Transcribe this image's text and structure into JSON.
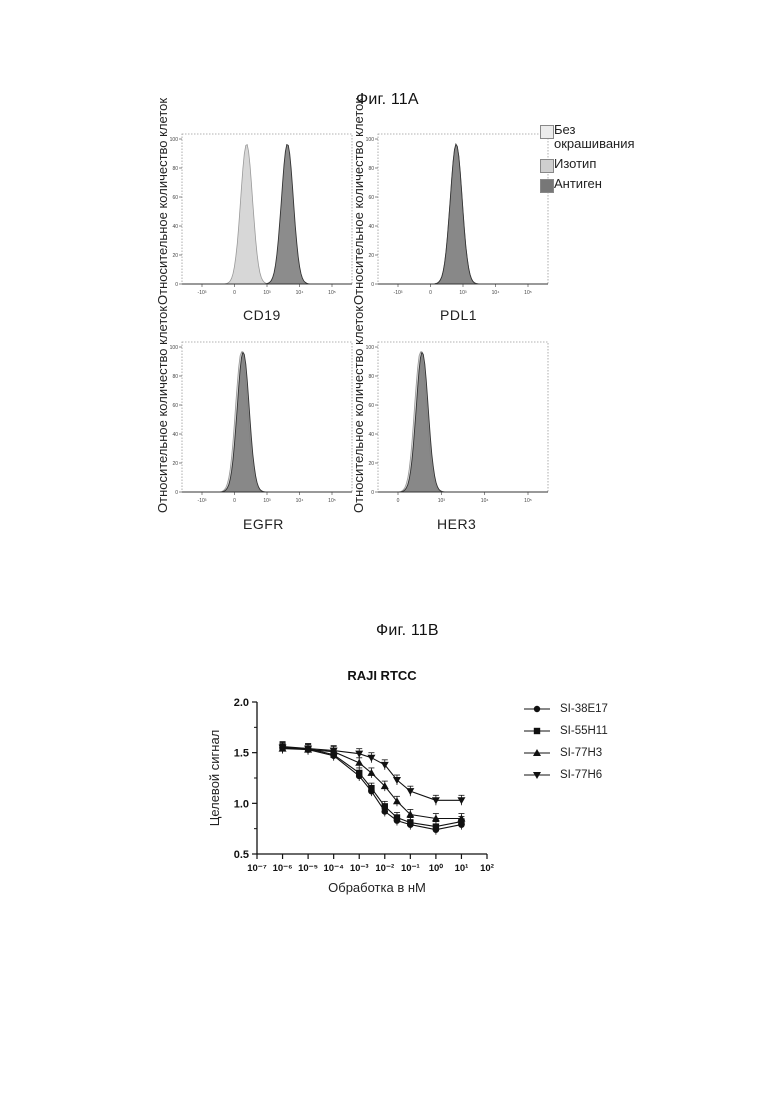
{
  "figure_a": {
    "title": "Фиг. 11A",
    "y_label": "Относительное количество клеток",
    "legend": [
      {
        "label_lines": [
          "Без",
          "окрашивания"
        ],
        "color": "#e8e8e8"
      },
      {
        "label_lines": [
          "Изотип"
        ],
        "color": "#c9c9c9"
      },
      {
        "label_lines": [
          "Антиген"
        ],
        "color": "#7a7a7a"
      }
    ],
    "y_ticks": [
      "100",
      "80",
      "60",
      "40",
      "20",
      "0"
    ],
    "panels": [
      {
        "name": "CD19",
        "x_ticks": [
          "-10³",
          "0",
          "10³",
          "10⁴",
          "10⁵"
        ],
        "isotype_peak": 0.38,
        "antigen_peak": 0.62
      },
      {
        "name": "PDL1",
        "x_ticks": [
          "-10³",
          "0",
          "10³",
          "10⁴",
          "10⁵"
        ],
        "isotype_peak": 0.46,
        "antigen_peak": 0.46
      },
      {
        "name": "EGFR",
        "x_ticks": [
          "-10³",
          "0",
          "10³",
          "10⁴",
          "10⁵"
        ],
        "isotype_peak": 0.35,
        "antigen_peak": 0.36
      },
      {
        "name": "HER3",
        "x_ticks": [
          "0",
          "10³",
          "10⁴",
          "10⁵"
        ],
        "isotype_peak": 0.25,
        "antigen_peak": 0.26
      }
    ]
  },
  "figure_b": {
    "title": "Фиг. 11B",
    "chart_data": {
      "type": "line",
      "title": "RAJI RTCC",
      "xlabel": "Обработка в нМ",
      "ylabel": "Целевой сигнал",
      "x_scale": "log",
      "xlim": [
        1e-07,
        100
      ],
      "ylim": [
        0.5,
        2.0
      ],
      "x": [
        1e-06,
        1e-05,
        0.0001,
        0.001,
        0.003,
        0.01,
        0.03,
        0.1,
        1,
        10
      ],
      "x_tick_labels": [
        "10⁻⁷",
        "10⁻⁶",
        "10⁻⁵",
        "10⁻⁴",
        "10⁻³",
        "10⁻²",
        "10⁻¹",
        "10⁰",
        "10¹",
        "10²"
      ],
      "y_tick_labels": [
        "0.5",
        "1.0",
        "1.5",
        "2.0"
      ],
      "series": [
        {
          "name": "SI-38E17",
          "marker": "circle",
          "values": [
            1.55,
            1.53,
            1.47,
            1.27,
            1.12,
            0.92,
            0.83,
            0.79,
            0.74,
            0.79
          ]
        },
        {
          "name": "SI-55H11",
          "marker": "square",
          "values": [
            1.56,
            1.54,
            1.48,
            1.3,
            1.15,
            0.97,
            0.86,
            0.81,
            0.77,
            0.82
          ]
        },
        {
          "name": "SI-77H3",
          "marker": "triangle-up",
          "values": [
            1.54,
            1.53,
            1.51,
            1.4,
            1.3,
            1.17,
            1.02,
            0.89,
            0.85,
            0.85
          ]
        },
        {
          "name": "SI-77H6",
          "marker": "triangle-down",
          "values": [
            1.55,
            1.54,
            1.52,
            1.49,
            1.45,
            1.38,
            1.23,
            1.12,
            1.03,
            1.03
          ]
        }
      ]
    }
  }
}
